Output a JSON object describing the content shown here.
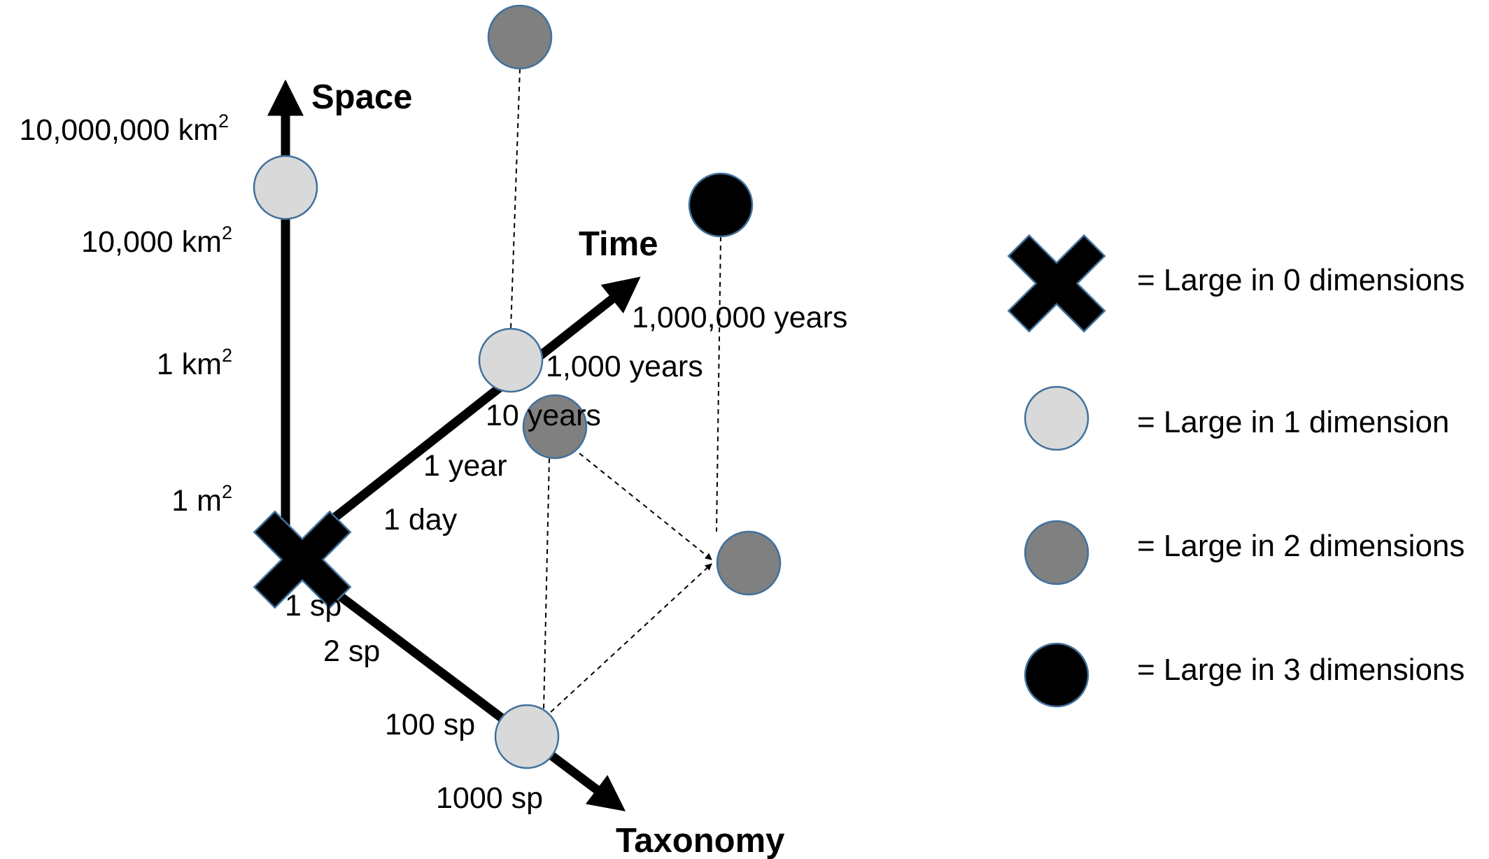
{
  "axes": {
    "space": {
      "title": "Space",
      "ticks": [
        "10,000,000 km",
        "10,000 km",
        "1 km",
        "1 m"
      ],
      "superscript": "2"
    },
    "time": {
      "title": "Time",
      "ticks": [
        "1,000,000 years",
        "1,000 years",
        "10 years",
        "1 year",
        "1 day"
      ]
    },
    "taxonomy": {
      "title": "Taxonomy",
      "ticks": [
        "1 sp",
        "2 sp",
        "100 sp",
        "1000 sp"
      ]
    }
  },
  "legend": [
    {
      "symbol": "cross-icon",
      "label": "= Large in 0 dimensions"
    },
    {
      "symbol": "light-circle-icon",
      "label": "= Large in 1 dimension",
      "color": "#d9d9d9"
    },
    {
      "symbol": "gray-circle-icon",
      "label": "= Large in 2 dimensions",
      "color": "#808080"
    },
    {
      "symbol": "black-circle-icon",
      "label": "= Large in 3 dimensions",
      "color": "#000000"
    }
  ],
  "colors": {
    "node_outline": "#41719c",
    "axis": "#000000"
  }
}
